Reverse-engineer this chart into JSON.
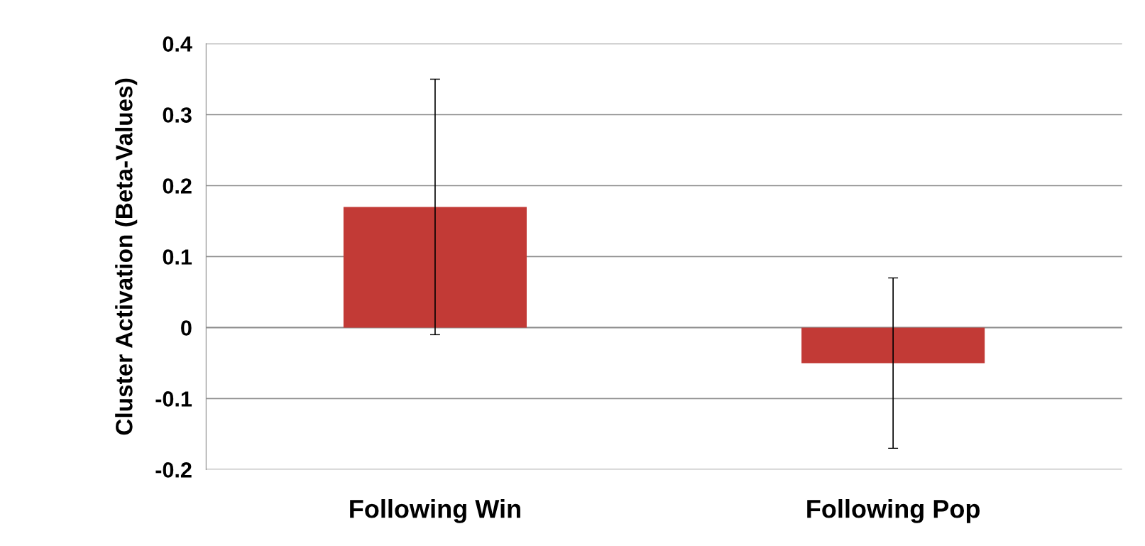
{
  "chart_data": {
    "type": "bar",
    "ylabel": "Cluster Activation (Beta-Values)",
    "categories": [
      "Following Win",
      "Following Pop"
    ],
    "values": [
      0.17,
      -0.05
    ],
    "errors": [
      0.18,
      0.12
    ],
    "color": "#c23a36",
    "ylim": [
      -0.2,
      0.4
    ],
    "yticks": [
      -0.2,
      -0.1,
      0,
      0.1,
      0.2,
      0.3,
      0.4
    ],
    "grid": "y"
  }
}
